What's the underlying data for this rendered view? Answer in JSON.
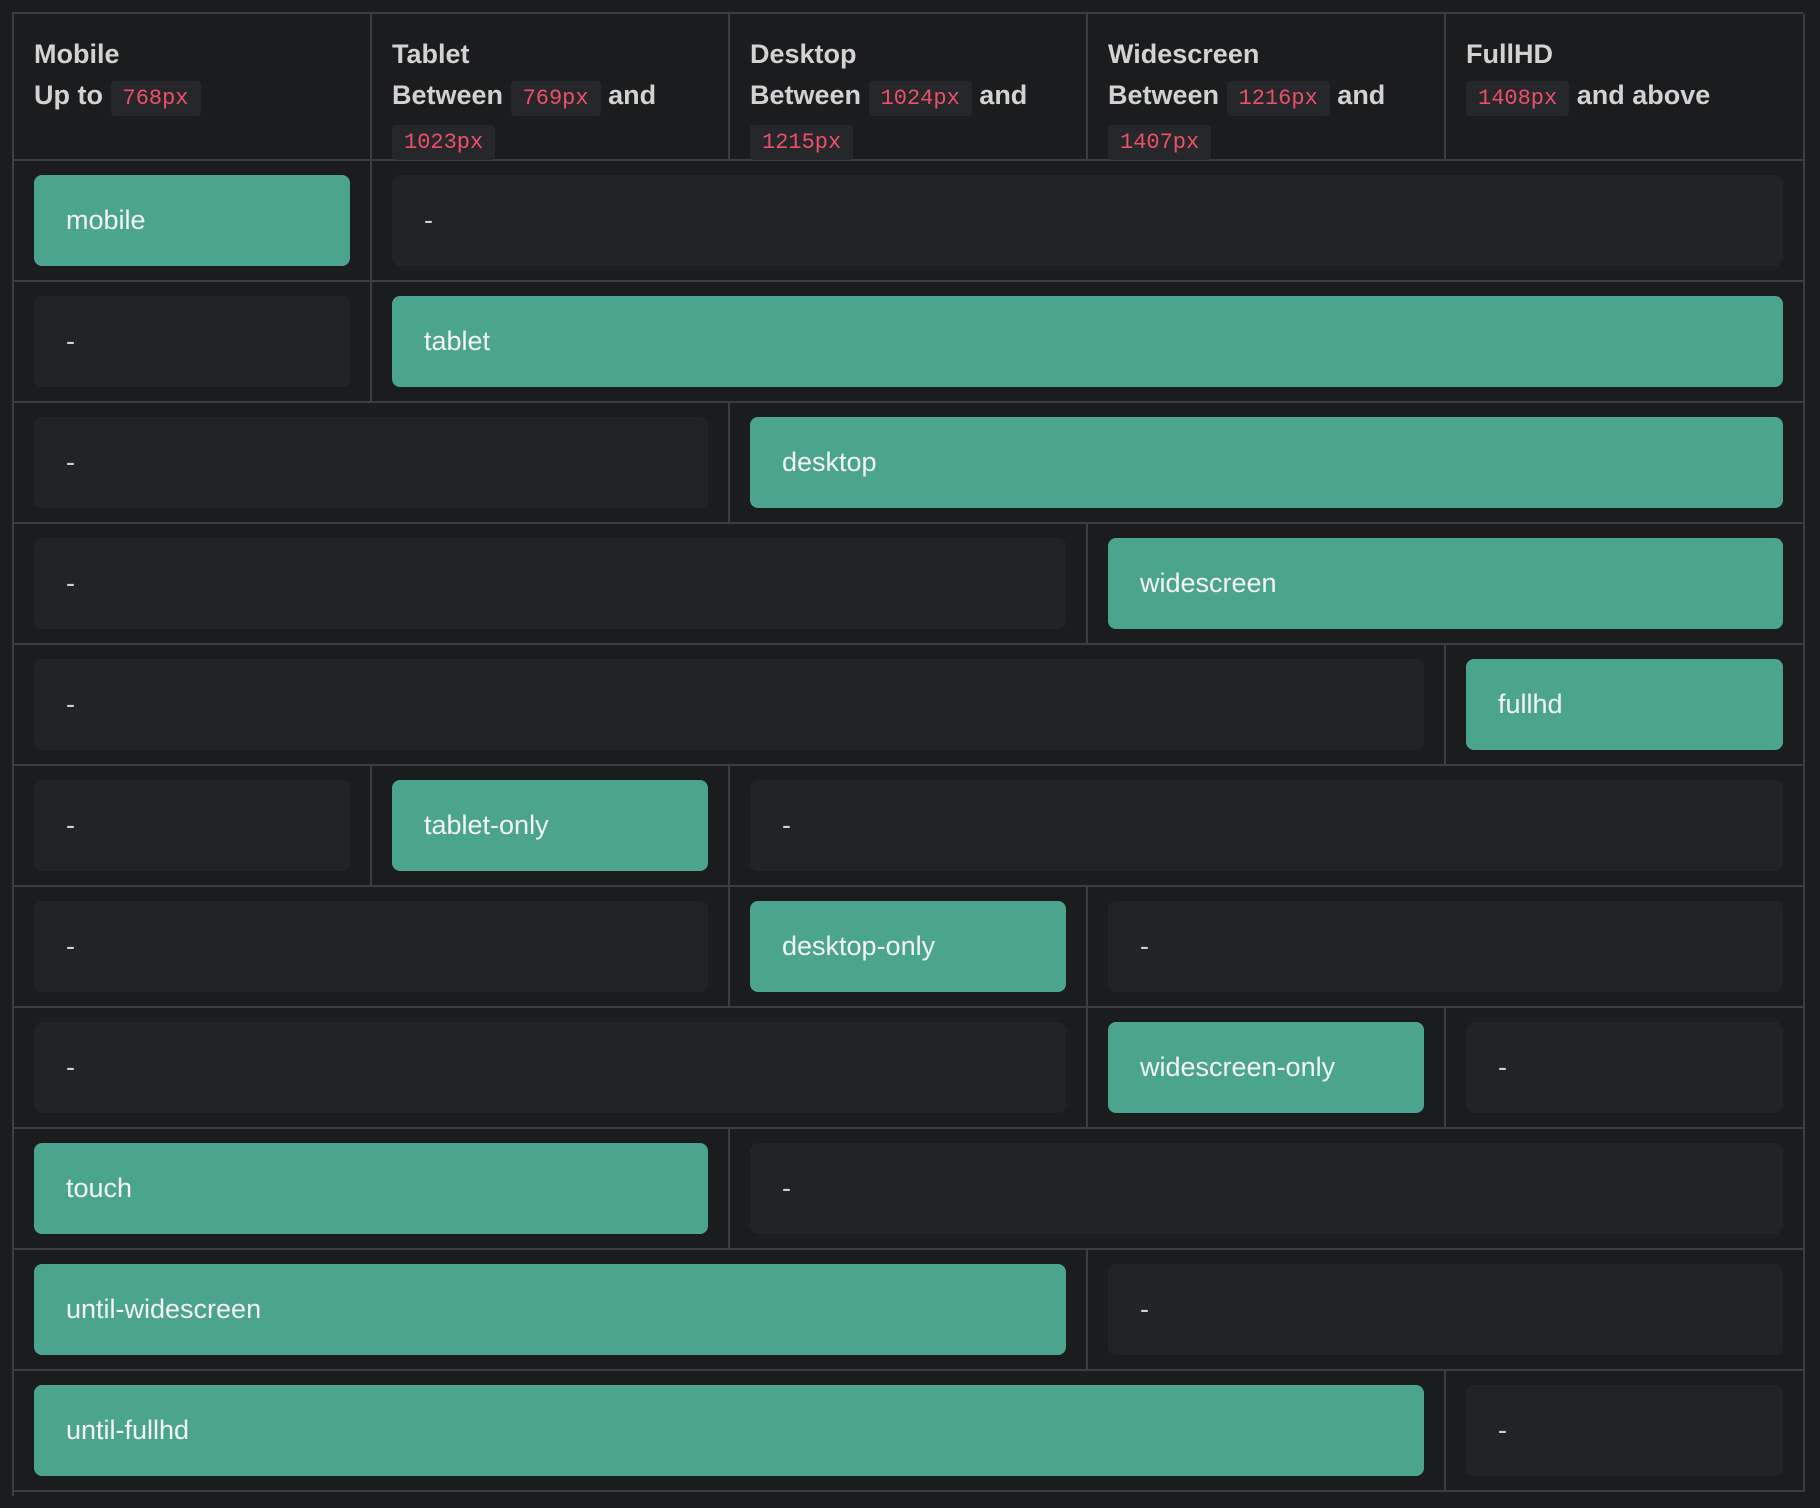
{
  "headers": [
    {
      "name": "Mobile",
      "prefix": "Up to",
      "from": "768px",
      "mid": "",
      "to": "",
      "suffix": ""
    },
    {
      "name": "Tablet",
      "prefix": "Between",
      "from": "769px",
      "mid": "and",
      "to": "1023px",
      "suffix": ""
    },
    {
      "name": "Desktop",
      "prefix": "Between",
      "from": "1024px",
      "mid": "and",
      "to": "1215px",
      "suffix": ""
    },
    {
      "name": "Widescreen",
      "prefix": "Between",
      "from": "1216px",
      "mid": "and",
      "to": "1407px",
      "suffix": ""
    },
    {
      "name": "FullHD",
      "prefix": "",
      "from": "1408px",
      "mid": "",
      "to": "",
      "suffix": "and above"
    }
  ],
  "rows": [
    {
      "segments": [
        {
          "label": "mobile",
          "span": 1,
          "active": true
        },
        {
          "label": "-",
          "span": 4,
          "active": false
        }
      ]
    },
    {
      "segments": [
        {
          "label": "-",
          "span": 1,
          "active": false
        },
        {
          "label": "tablet",
          "span": 4,
          "active": true
        }
      ]
    },
    {
      "segments": [
        {
          "label": "-",
          "span": 2,
          "active": false
        },
        {
          "label": "desktop",
          "span": 3,
          "active": true
        }
      ]
    },
    {
      "segments": [
        {
          "label": "-",
          "span": 3,
          "active": false
        },
        {
          "label": "widescreen",
          "span": 2,
          "active": true
        }
      ]
    },
    {
      "segments": [
        {
          "label": "-",
          "span": 4,
          "active": false
        },
        {
          "label": "fullhd",
          "span": 1,
          "active": true
        }
      ]
    },
    {
      "segments": [
        {
          "label": "-",
          "span": 1,
          "active": false
        },
        {
          "label": "tablet-only",
          "span": 1,
          "active": true
        },
        {
          "label": "-",
          "span": 3,
          "active": false
        }
      ]
    },
    {
      "segments": [
        {
          "label": "-",
          "span": 2,
          "active": false
        },
        {
          "label": "desktop-only",
          "span": 1,
          "active": true
        },
        {
          "label": "-",
          "span": 2,
          "active": false
        }
      ]
    },
    {
      "segments": [
        {
          "label": "-",
          "span": 3,
          "active": false
        },
        {
          "label": "widescreen-only",
          "span": 1,
          "active": true
        },
        {
          "label": "-",
          "span": 1,
          "active": false
        }
      ]
    },
    {
      "segments": [
        {
          "label": "touch",
          "span": 2,
          "active": true
        },
        {
          "label": "-",
          "span": 3,
          "active": false
        }
      ]
    },
    {
      "segments": [
        {
          "label": "until-widescreen",
          "span": 3,
          "active": true
        },
        {
          "label": "-",
          "span": 2,
          "active": false
        }
      ]
    },
    {
      "segments": [
        {
          "label": "until-fullhd",
          "span": 4,
          "active": true
        },
        {
          "label": "-",
          "span": 1,
          "active": false
        }
      ]
    }
  ],
  "colors": {
    "active": "#4ba48d",
    "inactive": "#222326",
    "code": "#ec4f6a"
  }
}
